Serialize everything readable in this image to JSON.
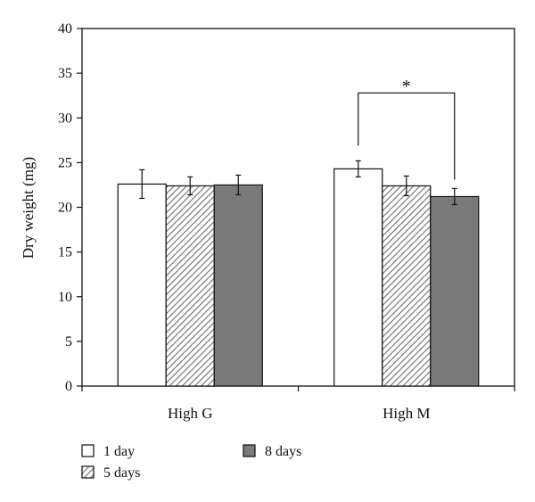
{
  "chart_data": {
    "type": "bar",
    "title": "",
    "xlabel": "",
    "ylabel": "Dry weight (mg)",
    "ylim": [
      0,
      40
    ],
    "yticks": [
      0,
      5,
      10,
      15,
      20,
      25,
      30,
      35,
      40
    ],
    "grid": false,
    "categories": [
      "High G",
      "High M"
    ],
    "series": [
      {
        "name": "1 day",
        "fill": "#ffffff",
        "pattern": "none",
        "values": [
          22.6,
          24.3
        ],
        "errors": [
          1.6,
          0.9
        ]
      },
      {
        "name": "5 days",
        "fill": "#ffffff",
        "pattern": "diagonal",
        "values": [
          22.4,
          22.4
        ],
        "errors": [
          1.0,
          1.1
        ]
      },
      {
        "name": "8 days",
        "fill": "#7a7a7a",
        "pattern": "none",
        "values": [
          22.5,
          21.2
        ],
        "errors": [
          1.1,
          0.9
        ]
      }
    ],
    "annotations": [
      {
        "text": "*",
        "category": "High M",
        "from_series": "1 day",
        "to_series": "8 days"
      }
    ],
    "legend_position": "bottom-left"
  },
  "colors": {
    "axis": "#111111",
    "bar_outline": "#111111",
    "dark_bar": "#7a7a7a",
    "hatch": "#6e6e6e"
  }
}
